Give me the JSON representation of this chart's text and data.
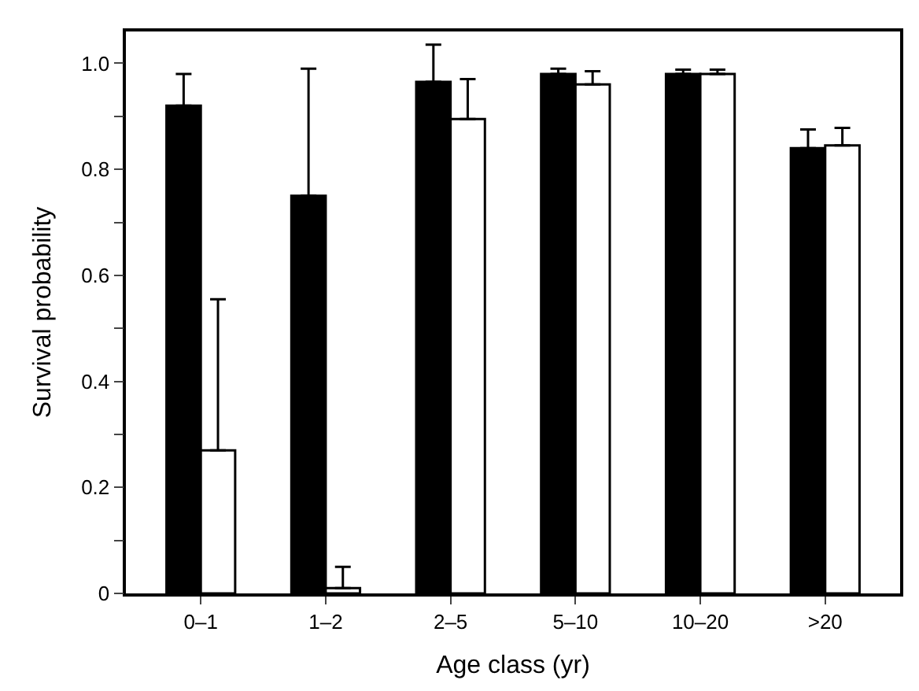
{
  "chart_data": {
    "type": "bar",
    "xlabel": "Age class (yr)",
    "ylabel": "Survival probability",
    "categories": [
      "0–1",
      "1–2",
      "2–5",
      "5–10",
      "10–20",
      ">20"
    ],
    "series": [
      {
        "color": "#000000",
        "values": [
          0.92,
          0.75,
          0.965,
          0.98,
          0.98,
          0.84
        ],
        "errors": [
          [
            0.92,
            0.98
          ],
          [
            0.75,
            0.99
          ],
          [
            0.965,
            1.035
          ],
          [
            0.98,
            0.99
          ],
          [
            0.98,
            0.988
          ],
          [
            0.84,
            0.875
          ]
        ]
      },
      {
        "color": "#ffffff",
        "values": [
          0.27,
          0.01,
          0.895,
          0.96,
          0.98,
          0.845
        ],
        "errors": [
          [
            0.27,
            0.555
          ],
          [
            0.01,
            0.05
          ],
          [
            0.895,
            0.97
          ],
          [
            0.96,
            0.985
          ],
          [
            0.98,
            0.988
          ],
          [
            0.845,
            0.878
          ]
        ]
      }
    ],
    "ylim": [
      0,
      1.06
    ],
    "yticks": [
      0,
      {
        "value": 0.1,
        "label": null
      },
      0.2,
      {
        "value": 0.3,
        "label": null
      },
      0.4,
      {
        "value": 0.5,
        "label": null
      },
      0.6,
      {
        "value": 0.7,
        "label": null
      },
      0.8,
      {
        "value": 0.9,
        "label": null
      },
      {
        "value": 1.0,
        "label": "1.0"
      }
    ]
  }
}
